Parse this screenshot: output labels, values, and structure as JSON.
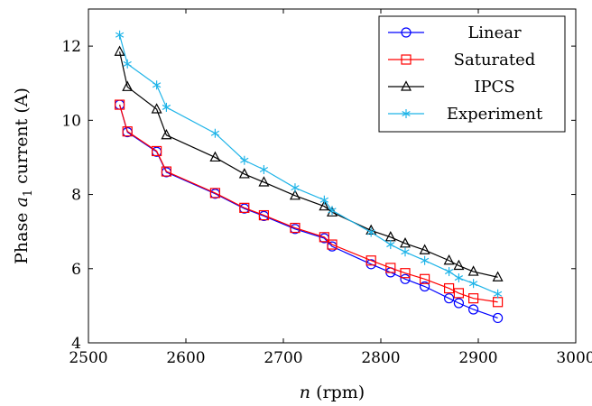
{
  "chart_data": {
    "type": "line",
    "xlabel": "n (rpm)",
    "xlabel_parts": {
      "var": "n",
      "unit": " (rpm)"
    },
    "ylabel": "Phase a1 current (A)",
    "ylabel_parts": {
      "pre": "Phase ",
      "var": "a",
      "sub": "1",
      "post": " current (A)"
    },
    "xlim": [
      2500,
      3000
    ],
    "ylim": [
      4,
      13
    ],
    "xticks": [
      2500,
      2600,
      2700,
      2800,
      2900,
      3000
    ],
    "yticks": [
      4,
      6,
      8,
      10,
      12
    ],
    "grid": false,
    "legend_position": "top-right",
    "series": [
      {
        "name": "Linear",
        "color": "#0000ff",
        "marker": "circle",
        "x": [
          2532,
          2540,
          2570,
          2580,
          2630,
          2660,
          2680,
          2712,
          2742,
          2750,
          2790,
          2810,
          2825,
          2845,
          2870,
          2880,
          2895,
          2920
        ],
        "y": [
          10.42,
          9.68,
          9.15,
          8.6,
          8.02,
          7.62,
          7.42,
          7.07,
          6.82,
          6.6,
          6.12,
          5.9,
          5.72,
          5.52,
          5.2,
          5.07,
          4.9,
          4.67
        ]
      },
      {
        "name": "Saturated",
        "color": "#ff0000",
        "marker": "square",
        "x": [
          2532,
          2540,
          2570,
          2580,
          2630,
          2660,
          2680,
          2712,
          2742,
          2750,
          2790,
          2810,
          2825,
          2845,
          2870,
          2880,
          2895,
          2920
        ],
        "y": [
          10.42,
          9.7,
          9.17,
          8.62,
          8.04,
          7.64,
          7.44,
          7.1,
          6.85,
          6.65,
          6.22,
          6.02,
          5.88,
          5.72,
          5.47,
          5.34,
          5.2,
          5.1
        ]
      },
      {
        "name": "IPCS",
        "color": "#000000",
        "marker": "triangle",
        "x": [
          2532,
          2540,
          2570,
          2580,
          2630,
          2660,
          2680,
          2712,
          2742,
          2750,
          2790,
          2810,
          2825,
          2845,
          2870,
          2880,
          2895,
          2920
        ],
        "y": [
          11.85,
          10.9,
          10.3,
          9.6,
          9.0,
          8.55,
          8.33,
          7.97,
          7.68,
          7.52,
          7.03,
          6.85,
          6.68,
          6.5,
          6.22,
          6.08,
          5.92,
          5.77
        ]
      },
      {
        "name": "Experiment",
        "color": "#1fb4e8",
        "marker": "star",
        "x": [
          2532,
          2540,
          2570,
          2580,
          2630,
          2660,
          2680,
          2712,
          2742,
          2750,
          2790,
          2810,
          2825,
          2845,
          2870,
          2880,
          2895,
          2920
        ],
        "y": [
          12.3,
          11.52,
          10.95,
          10.35,
          9.65,
          8.92,
          8.67,
          8.18,
          7.85,
          7.57,
          6.98,
          6.65,
          6.45,
          6.22,
          5.92,
          5.75,
          5.6,
          5.32
        ]
      }
    ]
  }
}
